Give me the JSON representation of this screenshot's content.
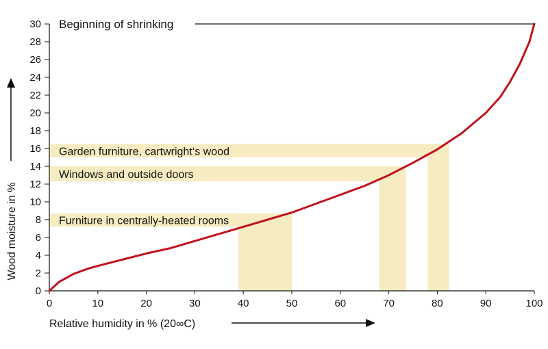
{
  "chart_data": {
    "type": "line",
    "xlabel": "Relative humidity in % (20∞C)",
    "ylabel": "Wood moisture in %",
    "xlim": [
      0,
      100
    ],
    "ylim": [
      0,
      30
    ],
    "x_ticks": [
      0,
      10,
      20,
      30,
      40,
      50,
      60,
      70,
      80,
      90,
      100
    ],
    "y_ticks": [
      0,
      2,
      4,
      6,
      8,
      10,
      12,
      14,
      16,
      18,
      20,
      22,
      24,
      26,
      28,
      30
    ],
    "grid": false,
    "series": [
      {
        "color": "#c1121c",
        "points": [
          [
            0,
            0
          ],
          [
            2,
            1.0
          ],
          [
            5,
            1.9
          ],
          [
            8,
            2.5
          ],
          [
            10,
            2.8
          ],
          [
            15,
            3.5
          ],
          [
            20,
            4.2
          ],
          [
            25,
            4.8
          ],
          [
            30,
            5.6
          ],
          [
            35,
            6.4
          ],
          [
            40,
            7.2
          ],
          [
            45,
            8.0
          ],
          [
            50,
            8.8
          ],
          [
            55,
            9.8
          ],
          [
            60,
            10.8
          ],
          [
            65,
            11.8
          ],
          [
            70,
            13.0
          ],
          [
            75,
            14.4
          ],
          [
            80,
            15.9
          ],
          [
            85,
            17.7
          ],
          [
            90,
            20.0
          ],
          [
            93,
            21.8
          ],
          [
            95,
            23.5
          ],
          [
            97,
            25.5
          ],
          [
            99,
            28.0
          ],
          [
            100,
            30
          ]
        ]
      }
    ],
    "bands": [
      {
        "label": "Garden furniture, cartwright‘s wood",
        "y_range": [
          15,
          16.5
        ],
        "x_range": [
          78,
          82.5
        ]
      },
      {
        "label": "Windows and outside doors",
        "y_range": [
          12.3,
          14
        ],
        "x_range": [
          68,
          73.5
        ]
      },
      {
        "label": "Furniture in centrally-heated rooms",
        "y_range": [
          7.2,
          8.7
        ],
        "x_range": [
          39,
          50
        ]
      }
    ],
    "annotations": [
      {
        "text": "Beginning of shrinking",
        "y": 30
      }
    ]
  },
  "colors": {
    "curve": "#c1121c",
    "band": "#f7ebc1",
    "axis": "#111111"
  }
}
